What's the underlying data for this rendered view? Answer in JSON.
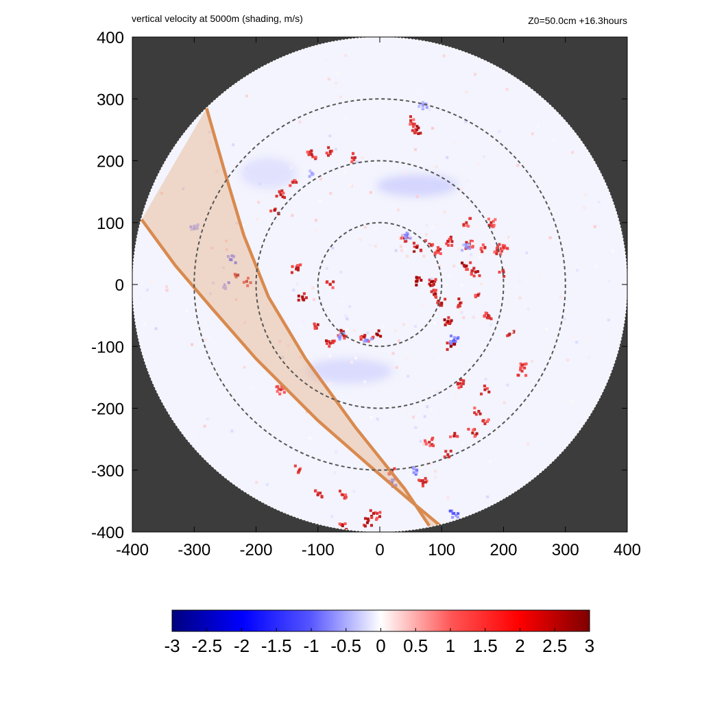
{
  "header": {
    "title": "vertical velocity at 5000m (shading, m/s)",
    "info": "Z0=50.0cm  +16.3hours"
  },
  "colors": {
    "background_outside_domain": "#3c3c3c",
    "domain_fill": "#f3f4fd",
    "ring_color": "#555555",
    "swath_fill": "#e8b48a",
    "swath_edge": "#d98a4f",
    "positive_strong": "#b30000",
    "positive_weak": "#f4a8a8",
    "negative_strong": "#3a3aff",
    "negative_weak": "#c9c9f5"
  },
  "chart_data": {
    "type": "heatmap",
    "title": "vertical velocity at 5000m (shading, m/s)",
    "xlim": [
      -400,
      400
    ],
    "ylim": [
      -400,
      400
    ],
    "x_ticks": [
      "-400",
      "-300",
      "-200",
      "-100",
      "0",
      "100",
      "200",
      "300",
      "400"
    ],
    "y_ticks": [
      "400",
      "300",
      "200",
      "100",
      "0",
      "-100",
      "-200",
      "-300",
      "-400"
    ],
    "x_tick_values": [
      -400,
      -300,
      -200,
      -100,
      0,
      100,
      200,
      300,
      400
    ],
    "y_tick_values": [
      400,
      300,
      200,
      100,
      0,
      -100,
      -200,
      -300,
      -400
    ],
    "domain_radius": 400,
    "range_rings": [
      100,
      200,
      300
    ],
    "swath": {
      "left_edge": [
        [
          -280,
          285
        ],
        [
          -250,
          180
        ],
        [
          -220,
          80
        ],
        [
          -180,
          -20
        ],
        [
          -120,
          -120
        ],
        [
          -40,
          -230
        ],
        [
          40,
          -330
        ],
        [
          80,
          -390
        ]
      ],
      "right_edge": [
        [
          -385,
          105
        ],
        [
          -330,
          30
        ],
        [
          -270,
          -40
        ],
        [
          -200,
          -120
        ],
        [
          -100,
          -220
        ],
        [
          -20,
          -290
        ],
        [
          50,
          -350
        ],
        [
          110,
          -400
        ]
      ]
    },
    "colorbar": {
      "range": [
        -3,
        3
      ],
      "tick_labels": [
        "-3",
        "-2.5",
        "-2",
        "-1.5",
        "-1",
        "-0.5",
        "0",
        "0.5",
        "1",
        "1.5",
        "2",
        "2.5",
        "3"
      ],
      "tick_values": [
        -3,
        -2.5,
        -2,
        -1.5,
        -1,
        -0.5,
        0,
        0.5,
        1,
        1.5,
        2,
        2.5,
        3
      ]
    },
    "features": {
      "updraft_cells": [
        [
          40,
          75,
          2.6
        ],
        [
          60,
          60,
          2.8
        ],
        [
          80,
          65,
          2.5
        ],
        [
          95,
          55,
          2.2
        ],
        [
          110,
          70,
          2.4
        ],
        [
          145,
          65,
          2.6
        ],
        [
          170,
          60,
          2.3
        ],
        [
          190,
          55,
          2.2
        ],
        [
          60,
          5,
          2.9
        ],
        [
          85,
          5,
          3.0
        ],
        [
          90,
          -15,
          2.8
        ],
        [
          100,
          -30,
          2.7
        ],
        [
          110,
          -60,
          2.9
        ],
        [
          115,
          -100,
          3.0
        ],
        [
          130,
          -30,
          2.5
        ],
        [
          140,
          30,
          2.8
        ],
        [
          155,
          20,
          2.6
        ],
        [
          160,
          -15,
          2.4
        ],
        [
          175,
          -50,
          2.3
        ],
        [
          200,
          20,
          2.2
        ],
        [
          210,
          -80,
          2.4
        ],
        [
          230,
          -130,
          2.2
        ],
        [
          -5,
          -80,
          3.0
        ],
        [
          -25,
          -85,
          2.6
        ],
        [
          -60,
          -80,
          2.5
        ],
        [
          -80,
          -95,
          2.4
        ],
        [
          -100,
          -65,
          2.6
        ],
        [
          -125,
          -20,
          2.8
        ],
        [
          -135,
          25,
          2.5
        ],
        [
          -80,
          0,
          2.3
        ],
        [
          -230,
          15,
          3.0
        ],
        [
          -215,
          5,
          2.7
        ],
        [
          -170,
          120,
          2.7
        ],
        [
          -160,
          145,
          2.4
        ],
        [
          -140,
          165,
          2.3
        ],
        [
          -110,
          210,
          2.5
        ],
        [
          -80,
          215,
          2.4
        ],
        [
          -40,
          205,
          2.3
        ],
        [
          60,
          250,
          2.6
        ],
        [
          50,
          265,
          2.2
        ],
        [
          130,
          -160,
          2.2
        ],
        [
          170,
          -170,
          2.4
        ],
        [
          160,
          -205,
          2.3
        ],
        [
          150,
          -240,
          2.5
        ],
        [
          170,
          -225,
          2.2
        ],
        [
          120,
          -245,
          2.4
        ],
        [
          80,
          -255,
          2.2
        ],
        [
          110,
          -275,
          2.3
        ],
        [
          -60,
          -340,
          2.2
        ],
        [
          -10,
          -370,
          2.6
        ],
        [
          0,
          -375,
          2.5
        ],
        [
          -100,
          -340,
          2.3
        ],
        [
          20,
          -300,
          2.4
        ],
        [
          70,
          -320,
          2.3
        ],
        [
          -60,
          -390,
          2.6
        ],
        [
          -20,
          -385,
          2.8
        ],
        [
          -160,
          -170,
          2.2
        ],
        [
          -130,
          -300,
          2.3
        ],
        [
          140,
          100,
          2.2
        ],
        [
          180,
          100,
          2.3
        ],
        [
          200,
          60,
          2.1
        ],
        [
          230,
          -140,
          2.0
        ]
      ],
      "downdraft_cells": [
        [
          45,
          80,
          -1.2
        ],
        [
          120,
          -90,
          -1.4
        ],
        [
          -20,
          -90,
          -1.1
        ],
        [
          -65,
          -85,
          -1.0
        ],
        [
          -240,
          40,
          -1.5
        ],
        [
          -250,
          0,
          -1.2
        ],
        [
          20,
          -320,
          -1.3
        ],
        [
          60,
          -300,
          -1.2
        ],
        [
          120,
          -370,
          -1.5
        ],
        [
          -300,
          90,
          -0.9
        ],
        [
          140,
          60,
          -1.0
        ],
        [
          -110,
          180,
          -0.8
        ],
        [
          70,
          290,
          -0.9
        ]
      ],
      "weak_descent_regions": [
        [
          60,
          160,
          130,
          35,
          -0.6
        ],
        [
          -50,
          -140,
          140,
          40,
          -0.5
        ],
        [
          -180,
          180,
          90,
          50,
          -0.4
        ]
      ]
    }
  }
}
